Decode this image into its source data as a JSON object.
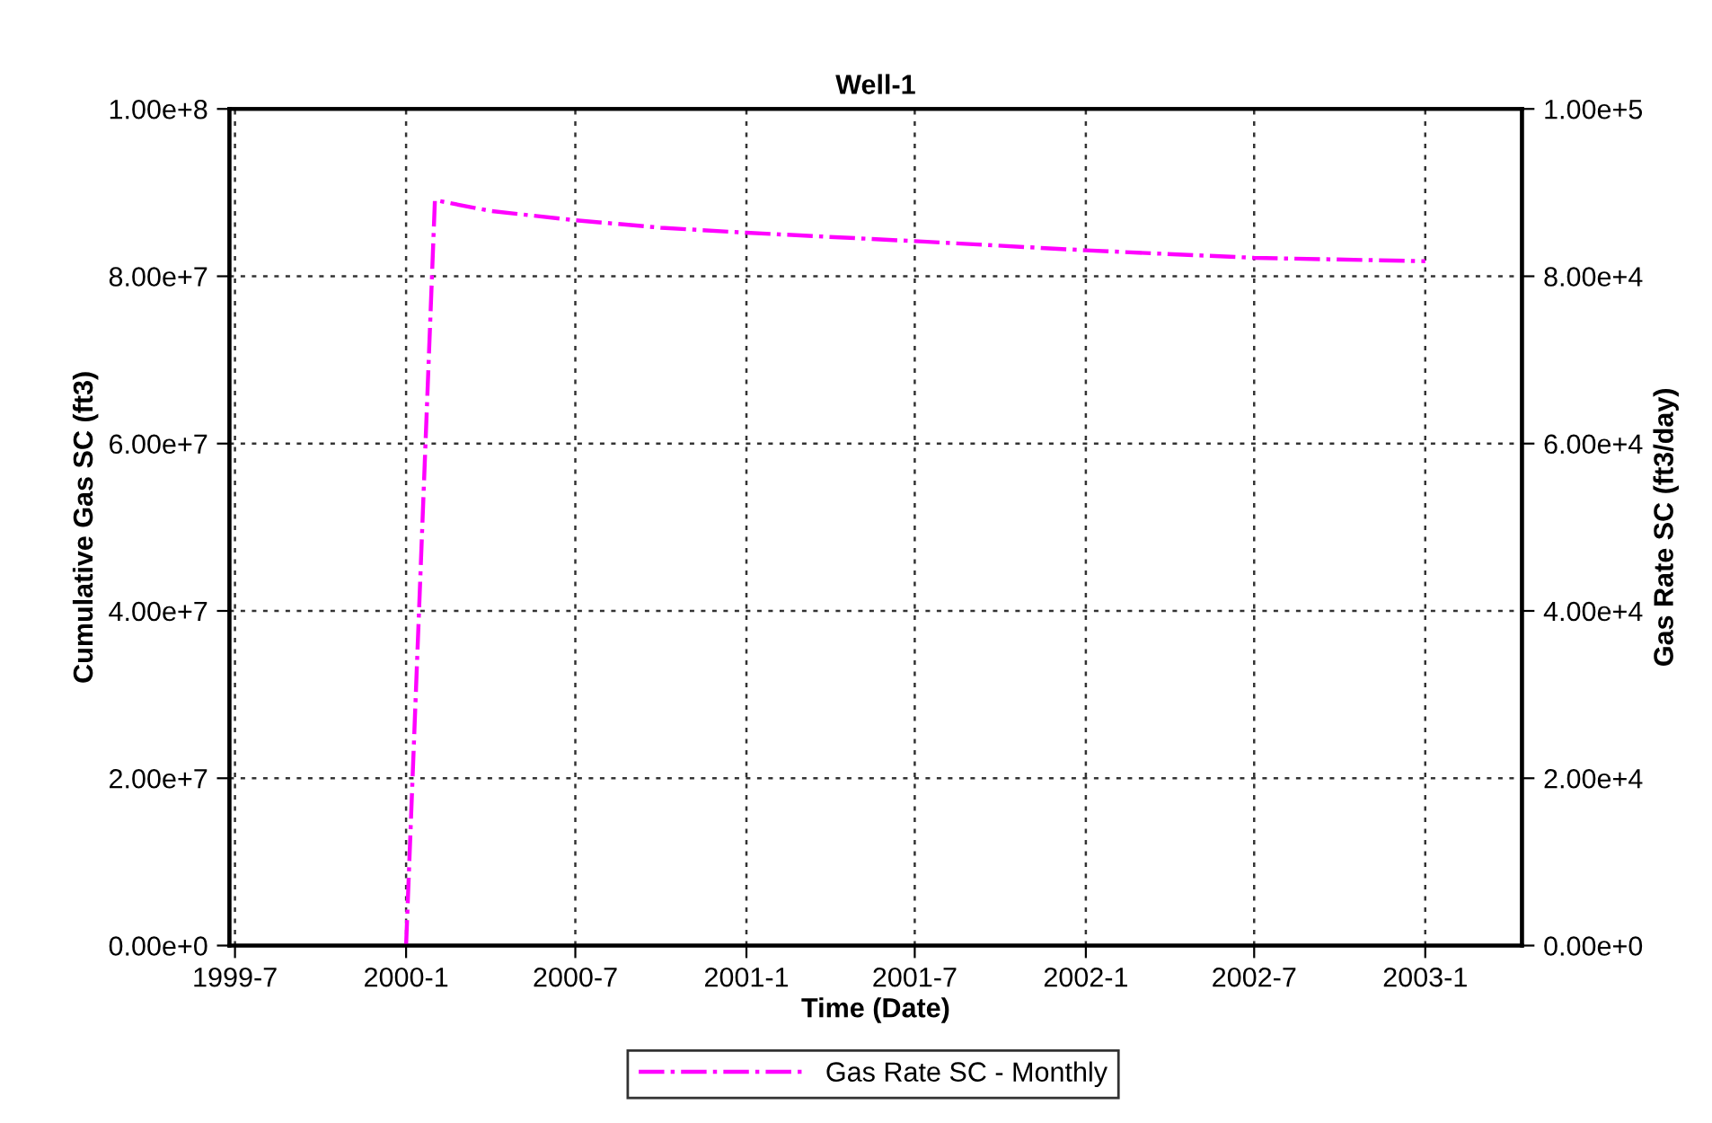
{
  "chart_data": {
    "type": "line",
    "title": "Well-1",
    "xlabel": "Time (Date)",
    "ylabel": "Cumulative Gas SC (ft3)",
    "y2label": "Gas Rate SC (ft3/day)",
    "xlim": [
      "1999-06-25",
      "2003-04-15"
    ],
    "xticks": [
      {
        "value": "1999-07-01",
        "label": "1999-7"
      },
      {
        "value": "2000-01-01",
        "label": "2000-1"
      },
      {
        "value": "2000-07-01",
        "label": "2000-7"
      },
      {
        "value": "2001-01-01",
        "label": "2001-1"
      },
      {
        "value": "2001-07-01",
        "label": "2001-7"
      },
      {
        "value": "2002-01-01",
        "label": "2002-1"
      },
      {
        "value": "2002-07-01",
        "label": "2002-7"
      },
      {
        "value": "2003-01-01",
        "label": "2003-1"
      }
    ],
    "ylim": [
      0,
      100000000
    ],
    "yticks": [
      {
        "value": 0,
        "label": "0.00e+0"
      },
      {
        "value": 20000000,
        "label": "2.00e+7"
      },
      {
        "value": 40000000,
        "label": "4.00e+7"
      },
      {
        "value": 60000000,
        "label": "6.00e+7"
      },
      {
        "value": 80000000,
        "label": "8.00e+7"
      },
      {
        "value": 100000000,
        "label": "1.00e+8"
      }
    ],
    "y2lim": [
      0,
      100000
    ],
    "y2ticks": [
      {
        "value": 0,
        "label": "0.00e+0"
      },
      {
        "value": 20000,
        "label": "2.00e+4"
      },
      {
        "value": 40000,
        "label": "4.00e+4"
      },
      {
        "value": 60000,
        "label": "6.00e+4"
      },
      {
        "value": 80000,
        "label": "8.00e+4"
      },
      {
        "value": 100000,
        "label": "1.00e+5"
      }
    ],
    "grid": true,
    "legend": "bottom",
    "line_style": "dashdot",
    "series": [
      {
        "name": "Gas Rate SC - Monthly",
        "color": "#ff00ff",
        "axis": "y2",
        "x": [
          "2000-01-01",
          "2000-02-01",
          "2000-04-01",
          "2000-07-01",
          "2000-10-01",
          "2001-01-01",
          "2001-07-01",
          "2002-01-01",
          "2002-07-01",
          "2003-01-01"
        ],
        "values": [
          0,
          89100,
          87800,
          86700,
          85800,
          85200,
          84200,
          83100,
          82200,
          81800
        ]
      }
    ]
  }
}
